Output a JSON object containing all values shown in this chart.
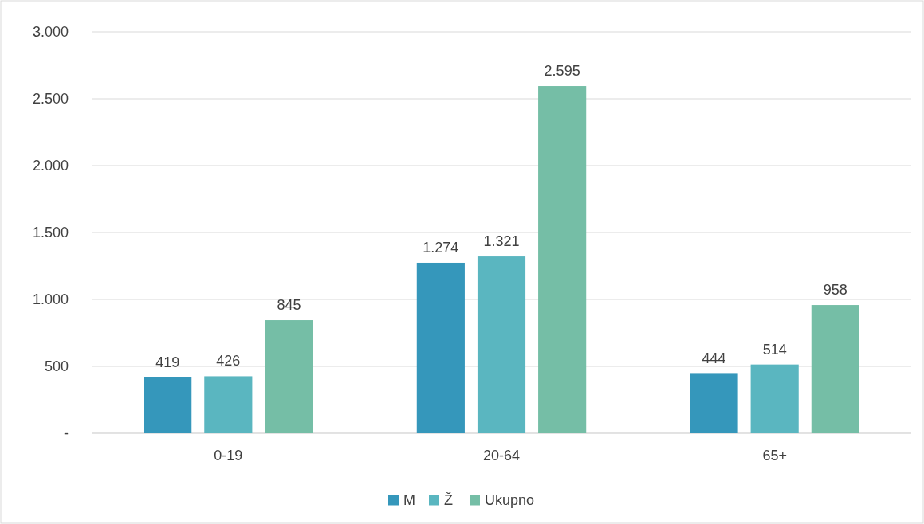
{
  "chart_data": {
    "type": "bar",
    "categories": [
      "0-19",
      "20-64",
      "65+"
    ],
    "series": [
      {
        "name": "M",
        "color": "#3597bb",
        "values": [
          419,
          1274,
          444
        ],
        "value_labels": [
          "419",
          "1.274",
          "444"
        ]
      },
      {
        "name": "Ž",
        "color": "#5ab6c0",
        "values": [
          426,
          1321,
          514
        ],
        "value_labels": [
          "426",
          "1.321",
          "514"
        ]
      },
      {
        "name": "Ukupno",
        "color": "#75bea6",
        "values": [
          845,
          2595,
          958
        ],
        "value_labels": [
          "845",
          "2.595",
          "958"
        ]
      }
    ],
    "ylim": [
      0,
      3000
    ],
    "yticks": [
      {
        "value": 0,
        "label": "-"
      },
      500,
      {
        "value": 1000,
        "label": "1.000"
      },
      {
        "value": 1500,
        "label": "1.500"
      },
      {
        "value": 2000,
        "label": "2.000"
      },
      {
        "value": 2500,
        "label": "2.500"
      },
      {
        "value": 3000,
        "label": "3.000"
      }
    ],
    "grid": "y",
    "legend": "bottom"
  }
}
